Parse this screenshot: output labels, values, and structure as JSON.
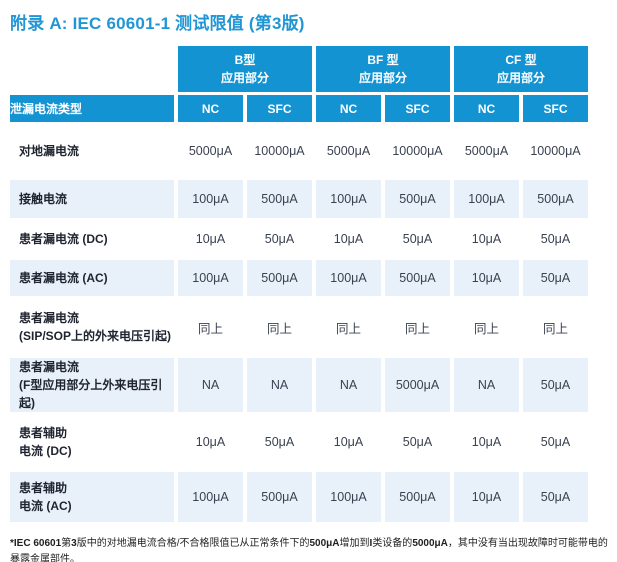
{
  "title": "附录 A: IEC 60601-1 测试限值 (第3版)",
  "colors": {
    "header_blue": "#1493d2",
    "row_alt_blue": "#e8f1f9",
    "title_blue": "#2196d4"
  },
  "table": {
    "corner_label": "泄漏电流类型",
    "groups": [
      {
        "label": "B型\n应用部分"
      },
      {
        "label": "BF 型\n应用部分"
      },
      {
        "label": "CF 型\n应用部分"
      }
    ],
    "subheaders": [
      "NC",
      "SFC",
      "NC",
      "SFC",
      "NC",
      "SFC"
    ],
    "rows": [
      {
        "label": "对地漏电流",
        "values": [
          "5000μA",
          "10000μA",
          "5000μA",
          "10000μA",
          "5000μA",
          "10000μA"
        ]
      },
      {
        "label": "接触电流",
        "values": [
          "100μA",
          "500μA",
          "100μA",
          "500μA",
          "100μA",
          "500μA"
        ]
      },
      {
        "label": "患者漏电流 (DC)",
        "values": [
          "10μA",
          "50μA",
          "10μA",
          "50μA",
          "10μA",
          "50μA"
        ]
      },
      {
        "label": "患者漏电流 (AC)",
        "values": [
          "100μA",
          "500μA",
          "100μA",
          "500μA",
          "10μA",
          "50μA"
        ]
      },
      {
        "label": "患者漏电流\n(SIP/SOP上的外来电压引起)",
        "values": [
          "同上",
          "同上",
          "同上",
          "同上",
          "同上",
          "同上"
        ]
      },
      {
        "label": "患者漏电流\n(F型应用部分上外来电压引起)",
        "values": [
          "NA",
          "NA",
          "NA",
          "5000μA",
          "NA",
          "50μA"
        ]
      },
      {
        "label": "患者辅助\n电流 (DC)",
        "values": [
          "10μA",
          "50μA",
          "10μA",
          "50μA",
          "10μA",
          "50μA"
        ]
      },
      {
        "label": "患者辅助\n电流 (AC)",
        "values": [
          "100μA",
          "500μA",
          "100μA",
          "500μA",
          "10μA",
          "50μA"
        ]
      }
    ]
  },
  "footnote": {
    "segments": [
      {
        "t": "*IEC 60601",
        "b": true
      },
      {
        "t": "第",
        "b": false
      },
      {
        "t": "3",
        "b": true
      },
      {
        "t": "版中的对地漏电流合格/不合格限值已从正常条件下的",
        "b": false
      },
      {
        "t": "500μA",
        "b": true
      },
      {
        "t": "增加到",
        "b": false
      },
      {
        "t": "I",
        "b": true
      },
      {
        "t": "类设备的",
        "b": false
      },
      {
        "t": "5000μA",
        "b": true
      },
      {
        "t": "，其中没有当出现故障时可能带电的暴露金属部件。",
        "b": false
      }
    ]
  }
}
